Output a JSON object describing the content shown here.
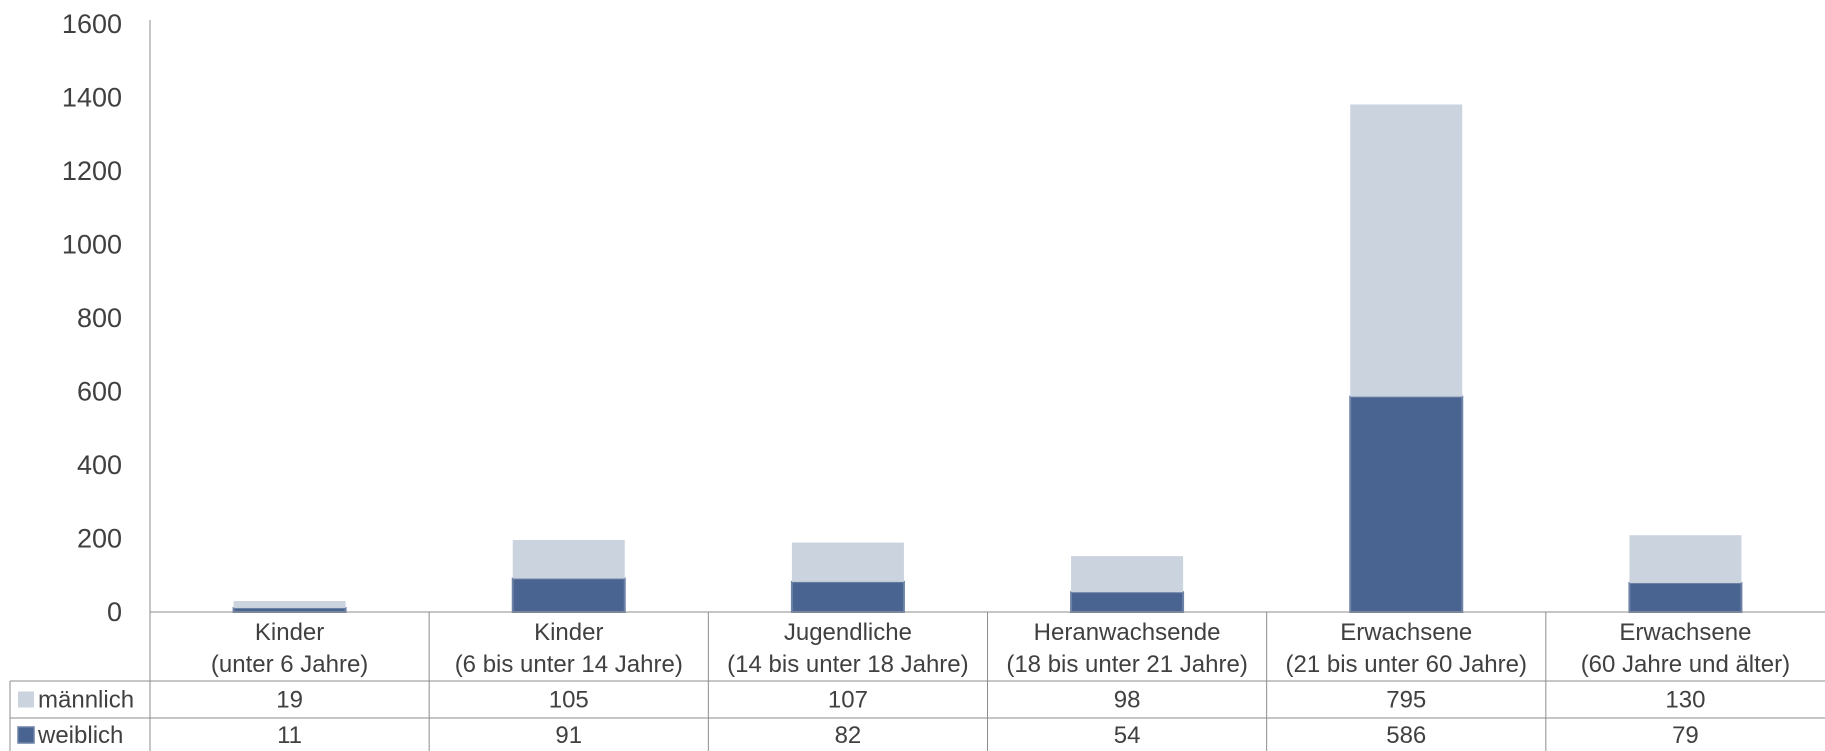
{
  "chart_data": {
    "type": "bar",
    "stacked": true,
    "categories": [
      [
        "Kinder",
        "(unter 6 Jahre)"
      ],
      [
        "Kinder",
        "(6 bis unter 14 Jahre)"
      ],
      [
        "Jugendliche",
        "(14 bis unter 18 Jahre)"
      ],
      [
        "Heranwachsende",
        "(18 bis unter 21 Jahre)"
      ],
      [
        "Erwachsene",
        "(21 bis unter 60 Jahre)"
      ],
      [
        "Erwachsene",
        "(60 Jahre und älter)"
      ]
    ],
    "series": [
      {
        "name": "weiblich",
        "values": [
          11,
          91,
          82,
          54,
          586,
          79
        ],
        "color": "#4a6491"
      },
      {
        "name": "männlich",
        "values": [
          19,
          105,
          107,
          98,
          795,
          130
        ],
        "color": "#cbd3df"
      }
    ],
    "table_rows": [
      "männlich",
      "weiblich"
    ],
    "yticks": [
      0,
      200,
      400,
      600,
      800,
      1000,
      1200,
      1400,
      1600
    ],
    "ylim": [
      0,
      1600
    ],
    "grid": false,
    "legend": "data-table"
  }
}
